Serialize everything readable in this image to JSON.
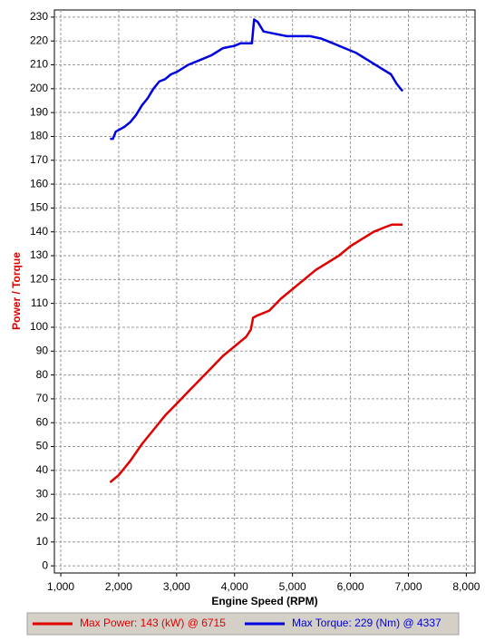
{
  "chart_data": {
    "type": "line",
    "x_label": "Engine Speed (RPM)",
    "y_label": "Power / Torque",
    "xlim": [
      890,
      8150
    ],
    "ylim": [
      -3,
      233
    ],
    "xticks": [
      {
        "value": 1000,
        "label": "1,000"
      },
      {
        "value": 2000,
        "label": "2,000"
      },
      {
        "value": 3000,
        "label": "3,000"
      },
      {
        "value": 4000,
        "label": "4,000"
      },
      {
        "value": 5000,
        "label": "5,000"
      },
      {
        "value": 6000,
        "label": "6,000"
      },
      {
        "value": 7000,
        "label": "7,000"
      },
      {
        "value": 8000,
        "label": "8,000"
      }
    ],
    "yticks": [
      0,
      10,
      20,
      30,
      40,
      50,
      60,
      70,
      80,
      90,
      100,
      110,
      120,
      130,
      140,
      150,
      160,
      170,
      180,
      190,
      200,
      210,
      220,
      230
    ],
    "grid": true,
    "series": [
      {
        "name": "Max Power: 143 (kW) @ 6715",
        "color": "#e00000",
        "x": [
          1850,
          2000,
          2200,
          2400,
          2600,
          2800,
          3000,
          3200,
          3400,
          3600,
          3800,
          4000,
          4200,
          4280,
          4320,
          4400,
          4600,
          4800,
          5000,
          5200,
          5400,
          5600,
          5800,
          6000,
          6200,
          6400,
          6600,
          6715,
          6900
        ],
        "values": [
          35,
          38,
          44,
          51,
          57,
          63,
          68,
          73,
          78,
          83,
          88,
          92,
          96,
          99,
          104,
          105,
          107,
          112,
          116,
          120,
          124,
          127,
          130,
          134,
          137,
          140,
          142,
          143,
          143
        ]
      },
      {
        "name": "Max Torque: 229 (Nm) @ 4337",
        "color": "#0000e0",
        "x": [
          1850,
          1900,
          1950,
          2100,
          2200,
          2300,
          2400,
          2500,
          2600,
          2700,
          2800,
          2900,
          3000,
          3200,
          3400,
          3600,
          3800,
          4000,
          4100,
          4300,
          4337,
          4400,
          4500,
          4700,
          4900,
          5100,
          5300,
          5500,
          5700,
          5900,
          6100,
          6300,
          6500,
          6700,
          6800,
          6900
        ],
        "values": [
          179,
          179,
          182,
          184,
          186,
          189,
          193,
          196,
          200,
          203,
          204,
          206,
          207,
          210,
          212,
          214,
          217,
          218,
          219,
          219,
          229,
          228,
          224,
          223,
          222,
          222,
          222,
          221,
          219,
          217,
          215,
          212,
          209,
          206,
          202,
          199
        ]
      }
    ]
  }
}
